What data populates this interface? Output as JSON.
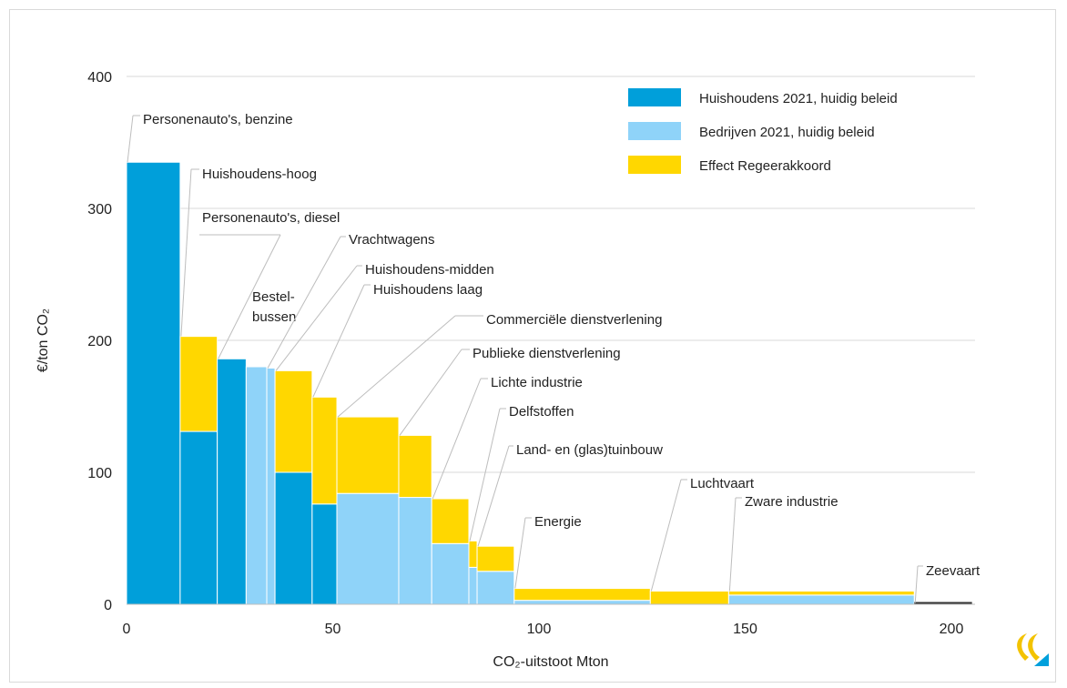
{
  "chart_data": {
    "type": "bar",
    "subtype": "variable-width stacked bar (marginal cost curve)",
    "xlabel": "CO₂-uitstoot Mton",
    "ylabel": "€/ton CO₂",
    "xlim": [
      0,
      205
    ],
    "ylim": [
      0,
      400
    ],
    "xticks": [
      0,
      50,
      100,
      150,
      200
    ],
    "yticks": [
      0,
      100,
      200,
      300,
      400
    ],
    "grid": "horizontal",
    "legend_position": "top-right",
    "colors": {
      "huishoudens": "#009fda",
      "bedrijven": "#8fd3f9",
      "effect": "#ffd700"
    },
    "legend": [
      {
        "key": "huishoudens",
        "label": "Huishoudens 2021, huidig beleid"
      },
      {
        "key": "bedrijven",
        "label": "Bedrijven 2021, huidig beleid"
      },
      {
        "key": "effect",
        "label": "Effect Regeerakkoord"
      }
    ],
    "segments": [
      {
        "name": "Personenauto's, benzine",
        "x0": 0,
        "x1": 13,
        "base": 335,
        "base_type": "huishoudens",
        "effect": 0
      },
      {
        "name": "Huishoudens-hoog",
        "x0": 13,
        "x1": 22,
        "base": 131,
        "base_type": "huishoudens",
        "effect": 72
      },
      {
        "name": "Personenauto's, diesel",
        "x0": 22,
        "x1": 29,
        "base": 186,
        "base_type": "huishoudens",
        "effect": 0
      },
      {
        "name": "Bestel-bussen",
        "x0": 29,
        "x1": 34,
        "base": 180,
        "base_type": "bedrijven",
        "effect": 0
      },
      {
        "name": "Vrachtwagens",
        "x0": 34,
        "x1": 36,
        "base": 179,
        "base_type": "bedrijven",
        "effect": 0
      },
      {
        "name": "Huishoudens-midden",
        "x0": 36,
        "x1": 45,
        "base": 100,
        "base_type": "huishoudens",
        "effect": 77
      },
      {
        "name": "Huishoudens laag",
        "x0": 45,
        "x1": 51,
        "base": 76,
        "base_type": "huishoudens",
        "effect": 81
      },
      {
        "name": "Commerciële dienstverlening",
        "x0": 51,
        "x1": 66,
        "base": 84,
        "base_type": "bedrijven",
        "effect": 58
      },
      {
        "name": "Publieke dienstverlening",
        "x0": 66,
        "x1": 74,
        "base": 81,
        "base_type": "bedrijven",
        "effect": 47
      },
      {
        "name": "Lichte industrie",
        "x0": 74,
        "x1": 83,
        "base": 46,
        "base_type": "bedrijven",
        "effect": 34
      },
      {
        "name": "Delfstoffen",
        "x0": 83,
        "x1": 85,
        "base": 28,
        "base_type": "bedrijven",
        "effect": 20
      },
      {
        "name": "Land- en (glas)tuinbouw",
        "x0": 85,
        "x1": 94,
        "base": 25,
        "base_type": "bedrijven",
        "effect": 19
      },
      {
        "name": "Energie",
        "x0": 94,
        "x1": 127,
        "base": 3,
        "base_type": "bedrijven",
        "effect": 9
      },
      {
        "name": "Luchtvaart",
        "x0": 127,
        "x1": 146,
        "base": 0,
        "base_type": "bedrijven",
        "effect": 10
      },
      {
        "name": "Zware industrie",
        "x0": 146,
        "x1": 191,
        "base": 7,
        "base_type": "bedrijven",
        "effect": 3
      },
      {
        "name": "Zeevaart",
        "x0": 191,
        "x1": 205,
        "base": 1,
        "base_type": "bedrijven",
        "effect": 0
      }
    ],
    "annotations": [
      {
        "lines": [
          "Personenauto's, benzine"
        ],
        "seg": 0
      },
      {
        "lines": [
          "Huishoudens-hoog"
        ],
        "seg": 1
      },
      {
        "lines": [
          "Personenauto's, diesel"
        ],
        "seg": 2
      },
      {
        "lines": [
          "Bestel-",
          "bussen"
        ],
        "seg": 3
      },
      {
        "lines": [
          "Vrachtwagens"
        ],
        "seg": 4
      },
      {
        "lines": [
          "Huishoudens-midden"
        ],
        "seg": 5
      },
      {
        "lines": [
          "Huishoudens laag"
        ],
        "seg": 6
      },
      {
        "lines": [
          "Commerciële dienstverlening"
        ],
        "seg": 7
      },
      {
        "lines": [
          "Publieke dienstverlening"
        ],
        "seg": 8
      },
      {
        "lines": [
          "Lichte industrie"
        ],
        "seg": 9
      },
      {
        "lines": [
          "Delfstoffen"
        ],
        "seg": 10
      },
      {
        "lines": [
          "Land- en (glas)tuinbouw"
        ],
        "seg": 11
      },
      {
        "lines": [
          "Energie"
        ],
        "seg": 12
      },
      {
        "lines": [
          "Luchtvaart"
        ],
        "seg": 13
      },
      {
        "lines": [
          "Zware industrie"
        ],
        "seg": 14
      },
      {
        "lines": [
          "Zeevaart"
        ],
        "seg": 15
      }
    ]
  }
}
